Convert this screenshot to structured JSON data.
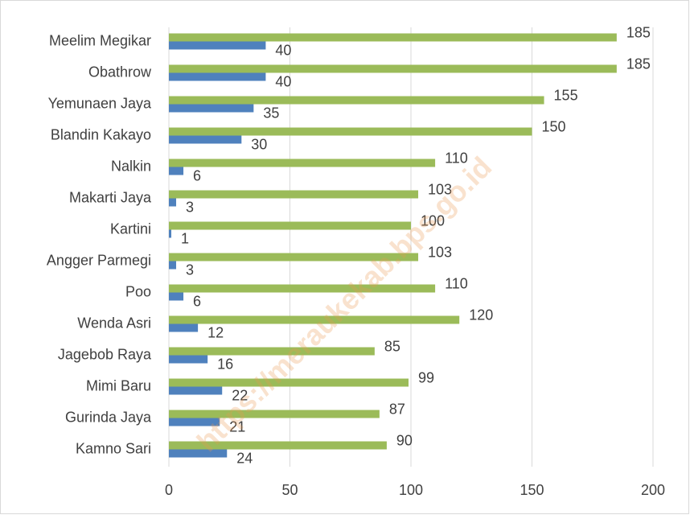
{
  "chart_data": {
    "type": "bar",
    "orientation": "horizontal",
    "watermark": "https://meraukekab.bps.go.id",
    "categories": [
      "Meelim Megikar",
      "Obathrow",
      "Yemunaen Jaya",
      "Blandin Kakayo",
      "Nalkin",
      "Makarti Jaya",
      "Kartini",
      "Angger Parmegi",
      "Poo",
      "Wenda Asri",
      "Jagebob Raya",
      "Mimi Baru",
      "Gurinda Jaya",
      "Kamno Sari"
    ],
    "series": [
      {
        "color": "#9bbb59",
        "values": [
          185,
          185,
          155,
          150,
          110,
          103,
          100,
          103,
          110,
          120,
          85,
          99,
          87,
          90
        ]
      },
      {
        "color": "#4f81bd",
        "values": [
          40,
          40,
          35,
          30,
          6,
          3,
          1,
          3,
          6,
          12,
          16,
          22,
          21,
          24
        ]
      }
    ],
    "xlim": [
      0,
      200
    ],
    "xticks": [
      0,
      50,
      100,
      150,
      200
    ],
    "grid": true
  }
}
